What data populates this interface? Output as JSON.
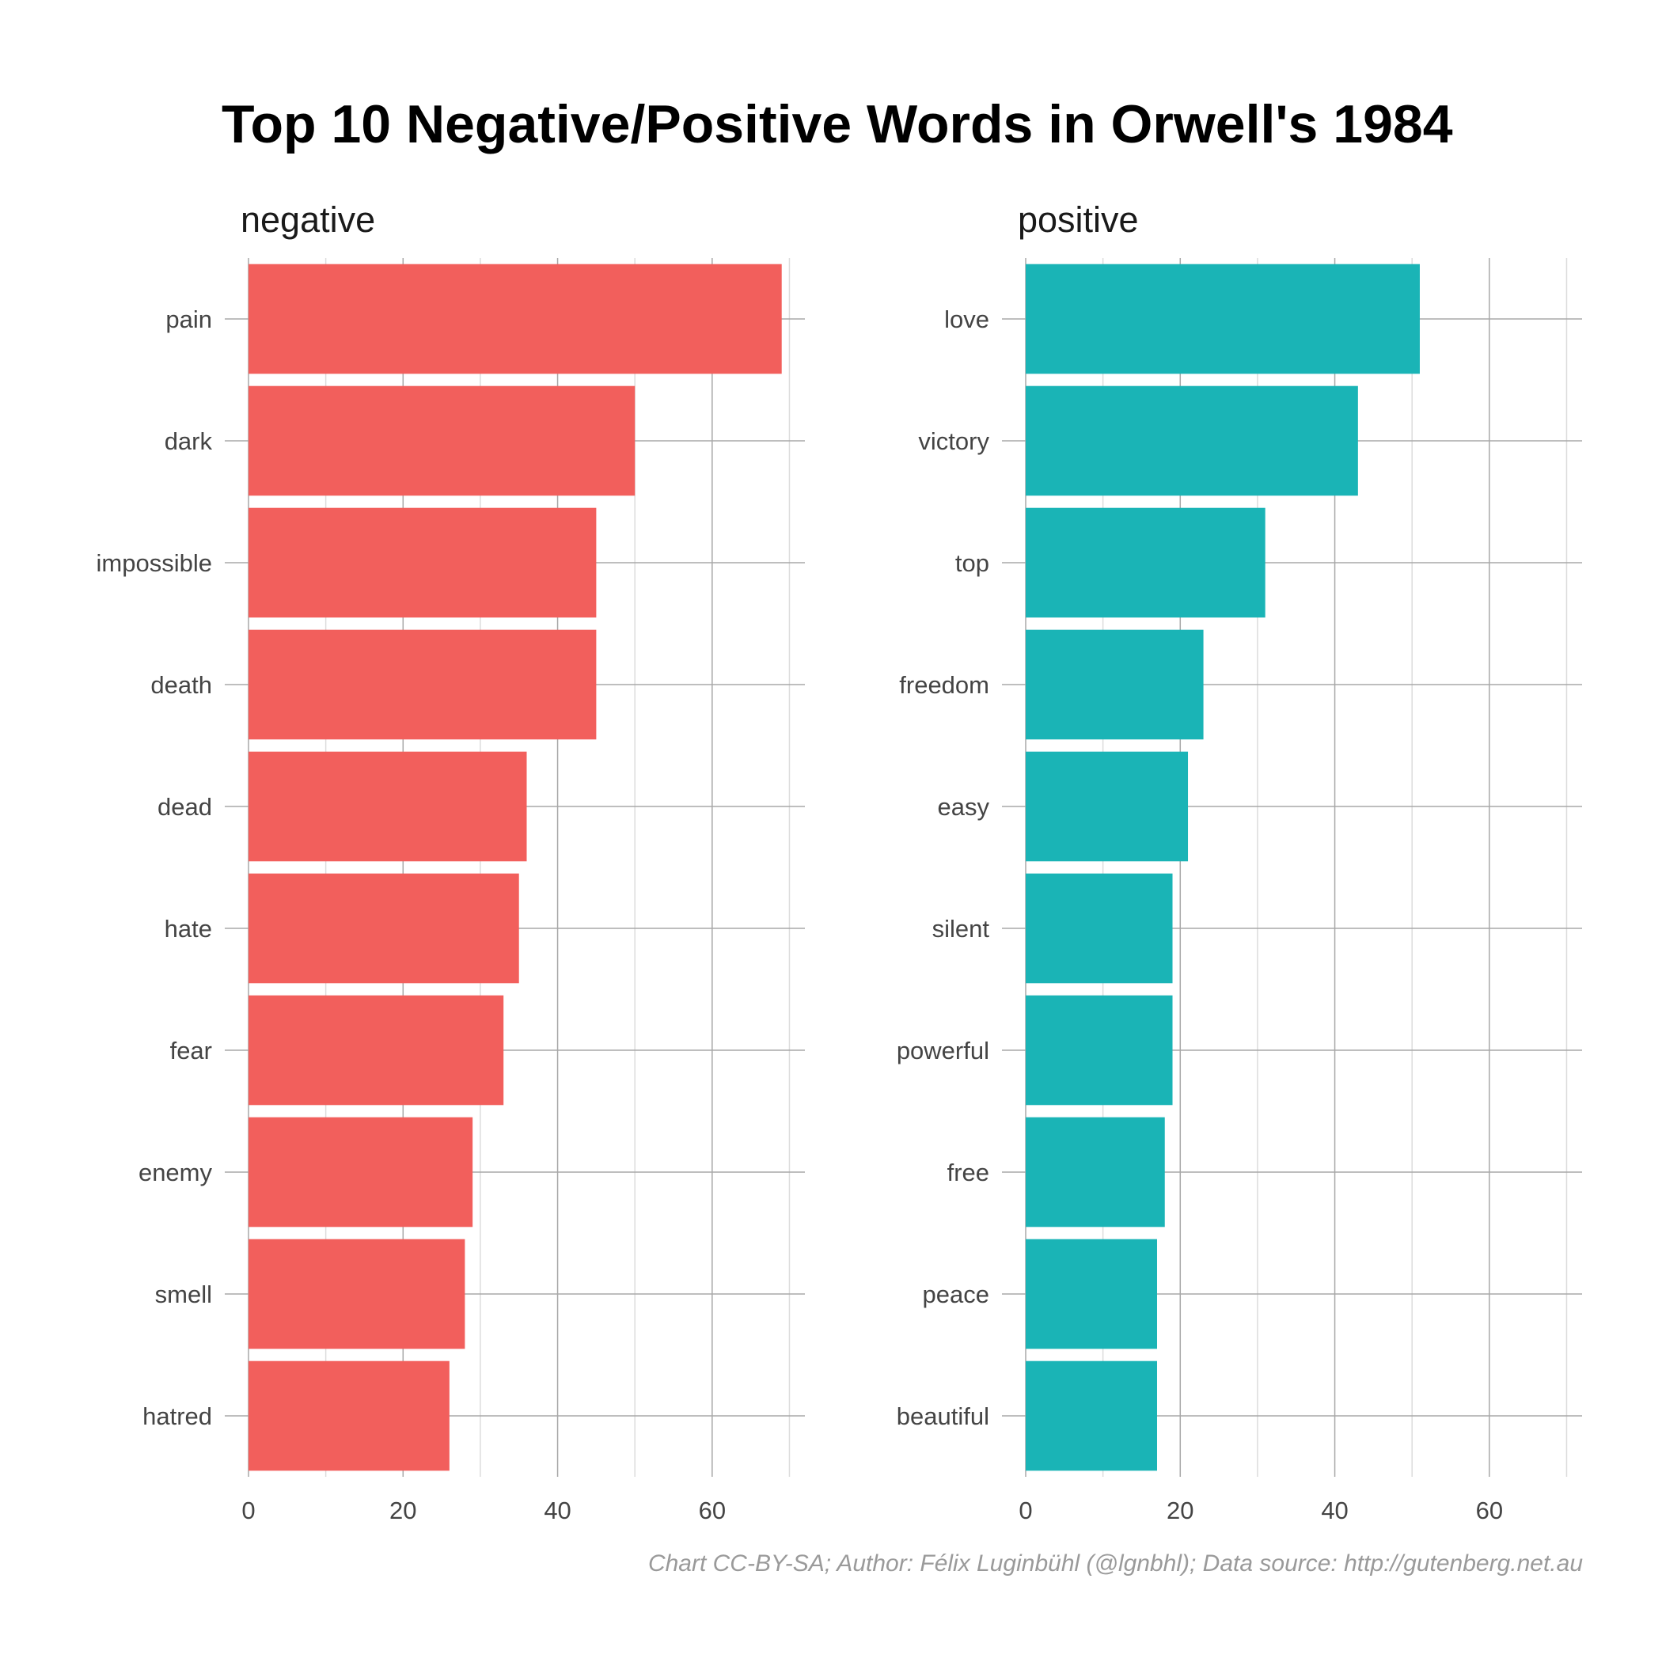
{
  "title": "Top 10 Negative/Positive Words in Orwell's 1984",
  "caption": "Chart CC-BY-SA; Author: Félix Luginbühl (@lgnbhl); Data source: http://gutenberg.net.au",
  "chart_data": {
    "type": "bar",
    "orientation": "horizontal",
    "xlim": [
      0,
      72
    ],
    "x_ticks": [
      0,
      20,
      40,
      60
    ],
    "grid": true,
    "panels": [
      {
        "name": "negative",
        "color": "#F25F5C",
        "categories": [
          "pain",
          "dark",
          "impossible",
          "death",
          "dead",
          "hate",
          "fear",
          "enemy",
          "smell",
          "hatred"
        ],
        "values": [
          69,
          50,
          45,
          45,
          36,
          35,
          33,
          29,
          28,
          26
        ]
      },
      {
        "name": "positive",
        "color": "#1AB4B6",
        "categories": [
          "love",
          "victory",
          "top",
          "freedom",
          "easy",
          "silent",
          "powerful",
          "free",
          "peace",
          "beautiful"
        ],
        "values": [
          51,
          43,
          31,
          23,
          21,
          19,
          19,
          18,
          17,
          17
        ]
      }
    ]
  }
}
